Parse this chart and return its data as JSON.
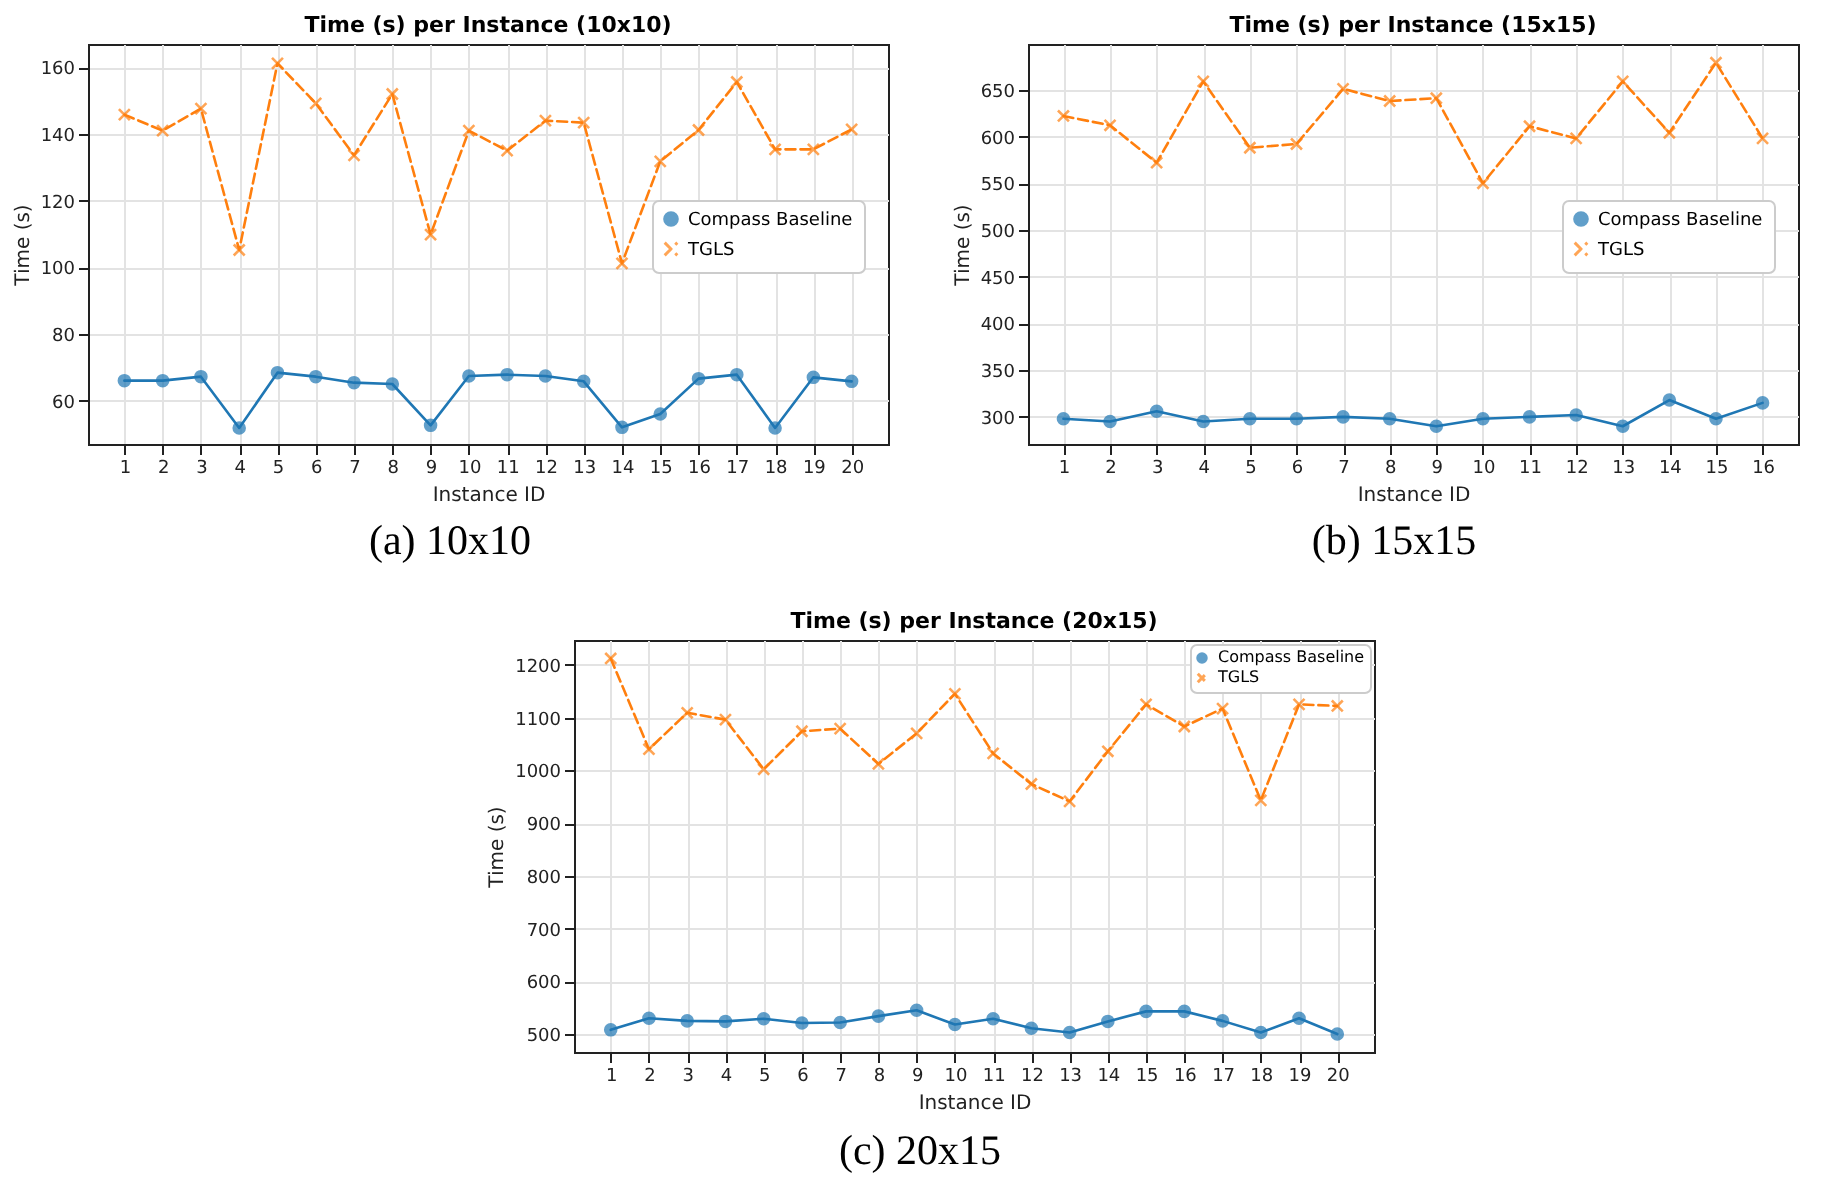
{
  "chart_data": [
    {
      "type": "line",
      "title": "Time (s) per Instance (10x10)",
      "xlabel": "Instance ID",
      "ylabel": "Time (s)",
      "x": [
        1,
        2,
        3,
        4,
        5,
        6,
        7,
        8,
        9,
        10,
        11,
        12,
        13,
        14,
        15,
        16,
        17,
        18,
        19,
        20
      ],
      "xlim": [
        0.05,
        20.95
      ],
      "xticks": [
        1,
        2,
        3,
        4,
        5,
        6,
        7,
        8,
        9,
        10,
        11,
        12,
        13,
        14,
        15,
        16,
        17,
        18,
        19,
        20
      ],
      "ylim": [
        47,
        167
      ],
      "yticks": [
        60,
        80,
        100,
        120,
        140,
        160
      ],
      "grid": true,
      "legend": "right",
      "series": [
        {
          "name": "Compass Baseline",
          "color": "#1f77b4",
          "marker": "circle",
          "line_style": "solid",
          "values": [
            66,
            66,
            67.2,
            51.8,
            68.4,
            67.2,
            65.4,
            65,
            52.6,
            67.4,
            67.8,
            67.4,
            65.8,
            52,
            56,
            66.6,
            67.8,
            51.8,
            67,
            65.8
          ]
        },
        {
          "name": "TGLS",
          "color": "#ff7f0e",
          "marker": "cross",
          "line_style": "dashed",
          "values": [
            145.8,
            141,
            147.6,
            105.2,
            161.2,
            149.2,
            133.6,
            152,
            109.8,
            141,
            135,
            144,
            143.4,
            101.2,
            131.8,
            141.2,
            155.6,
            135.4,
            135.4,
            141.4
          ]
        }
      ],
      "annotations": [
        "(a) 10x10"
      ]
    },
    {
      "type": "line",
      "title": "Time (s) per Instance (15x15)",
      "xlabel": "Instance ID",
      "ylabel": "Time (s)",
      "x": [
        1,
        2,
        3,
        4,
        5,
        6,
        7,
        8,
        9,
        10,
        11,
        12,
        13,
        14,
        15,
        16
      ],
      "xlim": [
        0.24,
        16.76
      ],
      "xticks": [
        1,
        2,
        3,
        4,
        5,
        6,
        7,
        8,
        9,
        10,
        11,
        12,
        13,
        14,
        15,
        16
      ],
      "ylim": [
        271,
        699
      ],
      "yticks": [
        300,
        350,
        400,
        450,
        500,
        550,
        600,
        650
      ],
      "grid": true,
      "legend": "right",
      "series": [
        {
          "name": "Compass Baseline",
          "color": "#1f77b4",
          "marker": "circle",
          "line_style": "solid",
          "values": [
            298,
            295,
            306,
            295,
            298,
            298,
            300,
            298,
            290,
            298,
            300,
            302,
            290,
            318,
            298,
            315
          ]
        },
        {
          "name": "TGLS",
          "color": "#ff7f0e",
          "marker": "cross",
          "line_style": "dashed",
          "values": [
            622,
            612,
            572,
            659,
            588,
            592,
            651,
            638,
            641,
            550,
            611,
            598,
            659,
            604,
            679,
            598
          ]
        }
      ],
      "annotations": [
        "(b) 15x15"
      ]
    },
    {
      "type": "line",
      "title": "Time (s) per Instance (20x15)",
      "xlabel": "Instance ID",
      "ylabel": "Time (s)",
      "x": [
        1,
        2,
        3,
        4,
        5,
        6,
        7,
        8,
        9,
        10,
        11,
        12,
        13,
        14,
        15,
        16,
        17,
        18,
        19,
        20
      ],
      "xlim": [
        0.04,
        20.96
      ],
      "xticks": [
        1,
        2,
        3,
        4,
        5,
        6,
        7,
        8,
        9,
        10,
        11,
        12,
        13,
        14,
        15,
        16,
        17,
        18,
        19,
        20
      ],
      "ylim": [
        466,
        1247
      ],
      "yticks": [
        500,
        600,
        700,
        800,
        900,
        1000,
        1100,
        1200
      ],
      "grid": true,
      "legend": "top right",
      "series": [
        {
          "name": "Compass Baseline",
          "color": "#1f77b4",
          "marker": "circle",
          "line_style": "solid",
          "values": [
            508,
            530,
            525,
            524,
            529,
            521,
            522,
            534,
            545,
            518,
            529,
            511,
            503,
            524,
            543,
            543,
            525,
            503,
            530,
            500
          ]
        },
        {
          "name": "TGLS",
          "color": "#ff7f0e",
          "marker": "cross",
          "line_style": "dashed",
          "values": [
            1212,
            1040,
            1109,
            1096,
            1002,
            1074,
            1079,
            1012,
            1070,
            1145,
            1032,
            974,
            941,
            1036,
            1125,
            1083,
            1117,
            943,
            1125,
            1122
          ]
        }
      ],
      "annotations": [
        "(c) 20x15"
      ]
    }
  ]
}
